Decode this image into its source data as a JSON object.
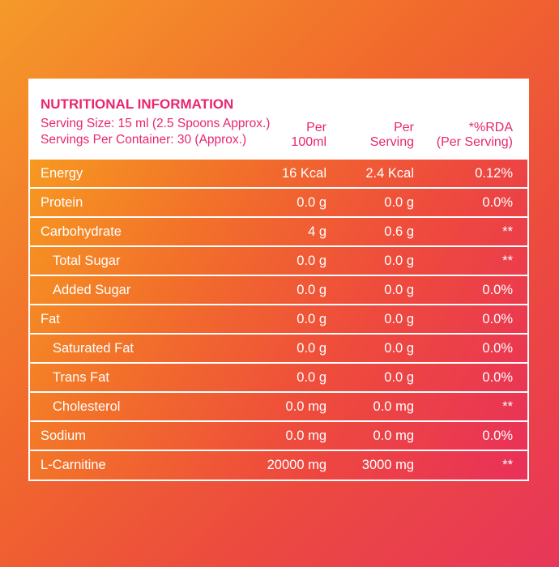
{
  "header": {
    "title": "NUTRITIONAL INFORMATION",
    "serving_size": "Serving Size: 15 ml (2.5 Spoons Approx.)",
    "servings_per_container": "Servings Per Container: 30 (Approx.)"
  },
  "columns": [
    [
      "Per",
      "100ml"
    ],
    [
      "Per",
      "Serving"
    ],
    [
      "*%RDA",
      "(Per Serving)"
    ]
  ],
  "rows": [
    {
      "name": "Energy",
      "indent": false,
      "cells": [
        "16 Kcal",
        "2.4 Kcal",
        "0.12%"
      ]
    },
    {
      "name": "Protein",
      "indent": false,
      "cells": [
        "0.0 g",
        "0.0 g",
        "0.0%"
      ]
    },
    {
      "name": "Carbohydrate",
      "indent": false,
      "cells": [
        "4 g",
        "0.6 g",
        "**"
      ]
    },
    {
      "name": "Total Sugar",
      "indent": true,
      "cells": [
        "0.0 g",
        "0.0 g",
        "**"
      ]
    },
    {
      "name": "Added Sugar",
      "indent": true,
      "cells": [
        "0.0 g",
        "0.0 g",
        "0.0%"
      ]
    },
    {
      "name": "Fat",
      "indent": false,
      "cells": [
        "0.0 g",
        "0.0 g",
        "0.0%"
      ]
    },
    {
      "name": "Saturated Fat",
      "indent": true,
      "cells": [
        "0.0 g",
        "0.0 g",
        "0.0%"
      ]
    },
    {
      "name": "Trans Fat",
      "indent": true,
      "cells": [
        "0.0 g",
        "0.0 g",
        "0.0%"
      ]
    },
    {
      "name": "Cholesterol",
      "indent": true,
      "cells": [
        "0.0 mg",
        "0.0 mg",
        "**"
      ]
    },
    {
      "name": "Sodium",
      "indent": false,
      "cells": [
        "0.0 mg",
        "0.0 mg",
        "0.0%"
      ]
    },
    {
      "name": "L-Carnitine",
      "indent": false,
      "cells": [
        "20000 mg",
        "3000 mg",
        "**"
      ]
    }
  ]
}
